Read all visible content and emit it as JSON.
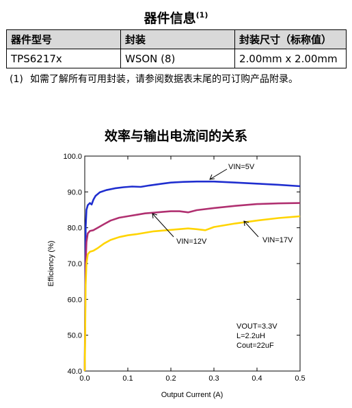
{
  "device_info": {
    "title": "器件信息",
    "title_note": "(1)",
    "headers": [
      "器件型号",
      "封装",
      "封装尺寸（标称值）"
    ],
    "rows": [
      [
        "TPS6217x",
        "WSON (8)",
        "2.00mm x 2.00mm"
      ]
    ],
    "footnote_mark": "(1)",
    "footnote": "如需了解所有可用封装，请参阅数据表末尾的可订购产品附录。"
  },
  "chart_data": {
    "type": "line",
    "title": "效率与输出电流间的关系",
    "xlabel": "Output Current (A)",
    "ylabel": "Efficiency (%)",
    "xlim": [
      0.0,
      0.5
    ],
    "ylim": [
      40.0,
      100.0
    ],
    "x_ticks": [
      "0.0",
      "0.1",
      "0.2",
      "0.3",
      "0.4",
      "0.5"
    ],
    "y_ticks": [
      "40.0",
      "50.0",
      "60.0",
      "70.0",
      "80.0",
      "90.0",
      "100.0"
    ],
    "grid": false,
    "series": [
      {
        "name": "VIN=5V",
        "color": "#1f2ecf",
        "points": [
          [
            0.0,
            40.0
          ],
          [
            0.002,
            80.0
          ],
          [
            0.004,
            85.0
          ],
          [
            0.007,
            86.3
          ],
          [
            0.012,
            86.9
          ],
          [
            0.016,
            86.5
          ],
          [
            0.02,
            87.8
          ],
          [
            0.025,
            88.9
          ],
          [
            0.035,
            89.9
          ],
          [
            0.05,
            90.5
          ],
          [
            0.07,
            91.0
          ],
          [
            0.09,
            91.3
          ],
          [
            0.11,
            91.5
          ],
          [
            0.13,
            91.4
          ],
          [
            0.15,
            91.8
          ],
          [
            0.18,
            92.3
          ],
          [
            0.2,
            92.6
          ],
          [
            0.23,
            92.8
          ],
          [
            0.26,
            92.9
          ],
          [
            0.3,
            92.9
          ],
          [
            0.35,
            92.6
          ],
          [
            0.4,
            92.3
          ],
          [
            0.45,
            92.0
          ],
          [
            0.5,
            91.6
          ]
        ]
      },
      {
        "name": "VIN=12V",
        "color": "#b03070",
        "points": [
          [
            0.0,
            40.0
          ],
          [
            0.002,
            70.0
          ],
          [
            0.004,
            76.0
          ],
          [
            0.007,
            78.4
          ],
          [
            0.012,
            79.1
          ],
          [
            0.02,
            79.3
          ],
          [
            0.03,
            80.0
          ],
          [
            0.045,
            81.0
          ],
          [
            0.06,
            82.0
          ],
          [
            0.08,
            82.8
          ],
          [
            0.1,
            83.2
          ],
          [
            0.12,
            83.6
          ],
          [
            0.14,
            84.0
          ],
          [
            0.16,
            84.2
          ],
          [
            0.18,
            84.4
          ],
          [
            0.2,
            84.6
          ],
          [
            0.22,
            84.6
          ],
          [
            0.24,
            84.3
          ],
          [
            0.26,
            84.9
          ],
          [
            0.3,
            85.5
          ],
          [
            0.35,
            86.1
          ],
          [
            0.4,
            86.6
          ],
          [
            0.45,
            86.8
          ],
          [
            0.5,
            86.9
          ]
        ]
      },
      {
        "name": "VIN=17V",
        "color": "#ffd400",
        "points": [
          [
            0.0,
            40.0
          ],
          [
            0.002,
            64.0
          ],
          [
            0.004,
            70.0
          ],
          [
            0.007,
            72.6
          ],
          [
            0.012,
            73.3
          ],
          [
            0.02,
            73.6
          ],
          [
            0.03,
            74.3
          ],
          [
            0.045,
            75.6
          ],
          [
            0.06,
            76.6
          ],
          [
            0.08,
            77.4
          ],
          [
            0.1,
            77.9
          ],
          [
            0.12,
            78.2
          ],
          [
            0.14,
            78.6
          ],
          [
            0.16,
            79.0
          ],
          [
            0.2,
            79.4
          ],
          [
            0.24,
            79.8
          ],
          [
            0.26,
            79.6
          ],
          [
            0.28,
            79.3
          ],
          [
            0.3,
            80.2
          ],
          [
            0.35,
            81.2
          ],
          [
            0.4,
            82.0
          ],
          [
            0.45,
            82.7
          ],
          [
            0.5,
            83.2
          ]
        ]
      }
    ],
    "annotations": {
      "vin5": "VIN=5V",
      "vin12": "VIN=12V",
      "vin17": "VIN=17V",
      "conditions": [
        "VOUT=3.3V",
        "L=2.2uH",
        "Cout=22uF"
      ]
    }
  }
}
